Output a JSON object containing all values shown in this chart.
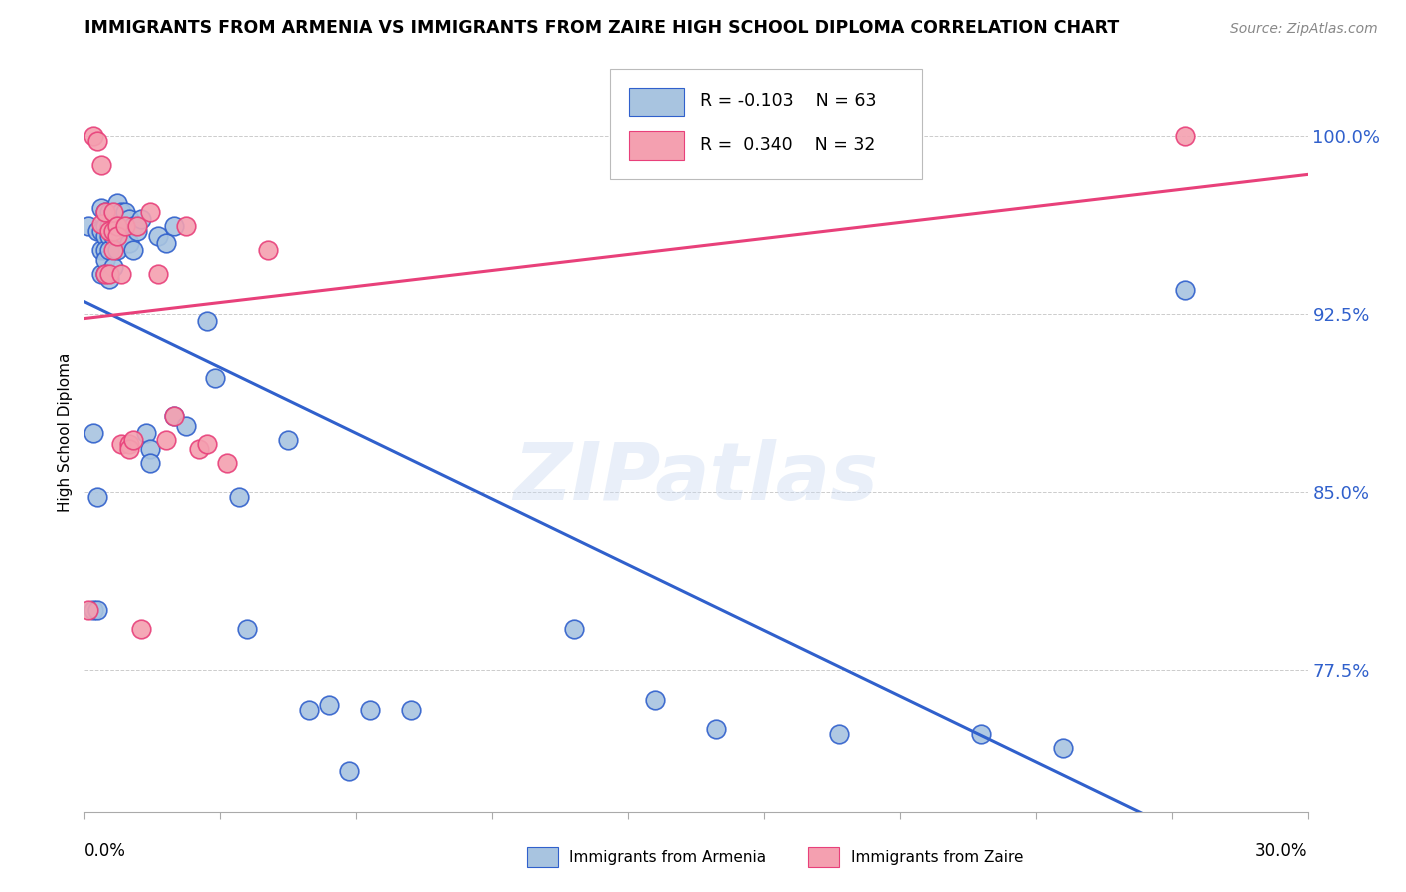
{
  "title": "IMMIGRANTS FROM ARMENIA VS IMMIGRANTS FROM ZAIRE HIGH SCHOOL DIPLOMA CORRELATION CHART",
  "source": "Source: ZipAtlas.com",
  "ylabel": "High School Diploma",
  "ytick_labels": [
    "77.5%",
    "85.0%",
    "92.5%",
    "100.0%"
  ],
  "ytick_values": [
    0.775,
    0.85,
    0.925,
    1.0
  ],
  "xlim": [
    0.0,
    0.3
  ],
  "ylim": [
    0.715,
    1.035
  ],
  "color_armenia": "#a8c4e0",
  "color_zaire": "#f4a0b0",
  "line_color_armenia": "#3060cc",
  "line_color_zaire": "#e8407a",
  "watermark": "ZIPatlas",
  "armenia_x": [
    0.001,
    0.002,
    0.002,
    0.003,
    0.003,
    0.003,
    0.004,
    0.004,
    0.004,
    0.004,
    0.005,
    0.005,
    0.005,
    0.005,
    0.005,
    0.005,
    0.006,
    0.006,
    0.006,
    0.006,
    0.006,
    0.007,
    0.007,
    0.007,
    0.007,
    0.008,
    0.008,
    0.008,
    0.009,
    0.009,
    0.01,
    0.01,
    0.011,
    0.011,
    0.012,
    0.012,
    0.013,
    0.014,
    0.015,
    0.016,
    0.016,
    0.018,
    0.02,
    0.022,
    0.022,
    0.025,
    0.03,
    0.032,
    0.038,
    0.04,
    0.05,
    0.055,
    0.06,
    0.065,
    0.07,
    0.08,
    0.12,
    0.14,
    0.155,
    0.185,
    0.22,
    0.24,
    0.27
  ],
  "armenia_y": [
    0.962,
    0.875,
    0.8,
    0.96,
    0.848,
    0.8,
    0.97,
    0.96,
    0.952,
    0.942,
    0.968,
    0.962,
    0.958,
    0.952,
    0.948,
    0.942,
    0.968,
    0.962,
    0.958,
    0.952,
    0.94,
    0.968,
    0.962,
    0.958,
    0.945,
    0.972,
    0.962,
    0.952,
    0.968,
    0.958,
    0.968,
    0.958,
    0.965,
    0.955,
    0.962,
    0.952,
    0.96,
    0.965,
    0.875,
    0.868,
    0.862,
    0.958,
    0.955,
    0.882,
    0.962,
    0.878,
    0.922,
    0.898,
    0.848,
    0.792,
    0.872,
    0.758,
    0.76,
    0.732,
    0.758,
    0.758,
    0.792,
    0.762,
    0.75,
    0.748,
    0.748,
    0.742,
    0.935
  ],
  "zaire_x": [
    0.001,
    0.002,
    0.003,
    0.004,
    0.004,
    0.005,
    0.005,
    0.006,
    0.006,
    0.007,
    0.007,
    0.007,
    0.008,
    0.008,
    0.009,
    0.009,
    0.01,
    0.011,
    0.011,
    0.012,
    0.013,
    0.014,
    0.016,
    0.018,
    0.02,
    0.022,
    0.025,
    0.028,
    0.03,
    0.035,
    0.045,
    0.27
  ],
  "zaire_y": [
    0.8,
    1.0,
    0.998,
    0.988,
    0.963,
    0.968,
    0.942,
    0.96,
    0.942,
    0.968,
    0.96,
    0.952,
    0.962,
    0.958,
    0.942,
    0.87,
    0.962,
    0.87,
    0.868,
    0.872,
    0.962,
    0.792,
    0.968,
    0.942,
    0.872,
    0.882,
    0.962,
    0.868,
    0.87,
    0.862,
    0.952,
    1.0
  ]
}
